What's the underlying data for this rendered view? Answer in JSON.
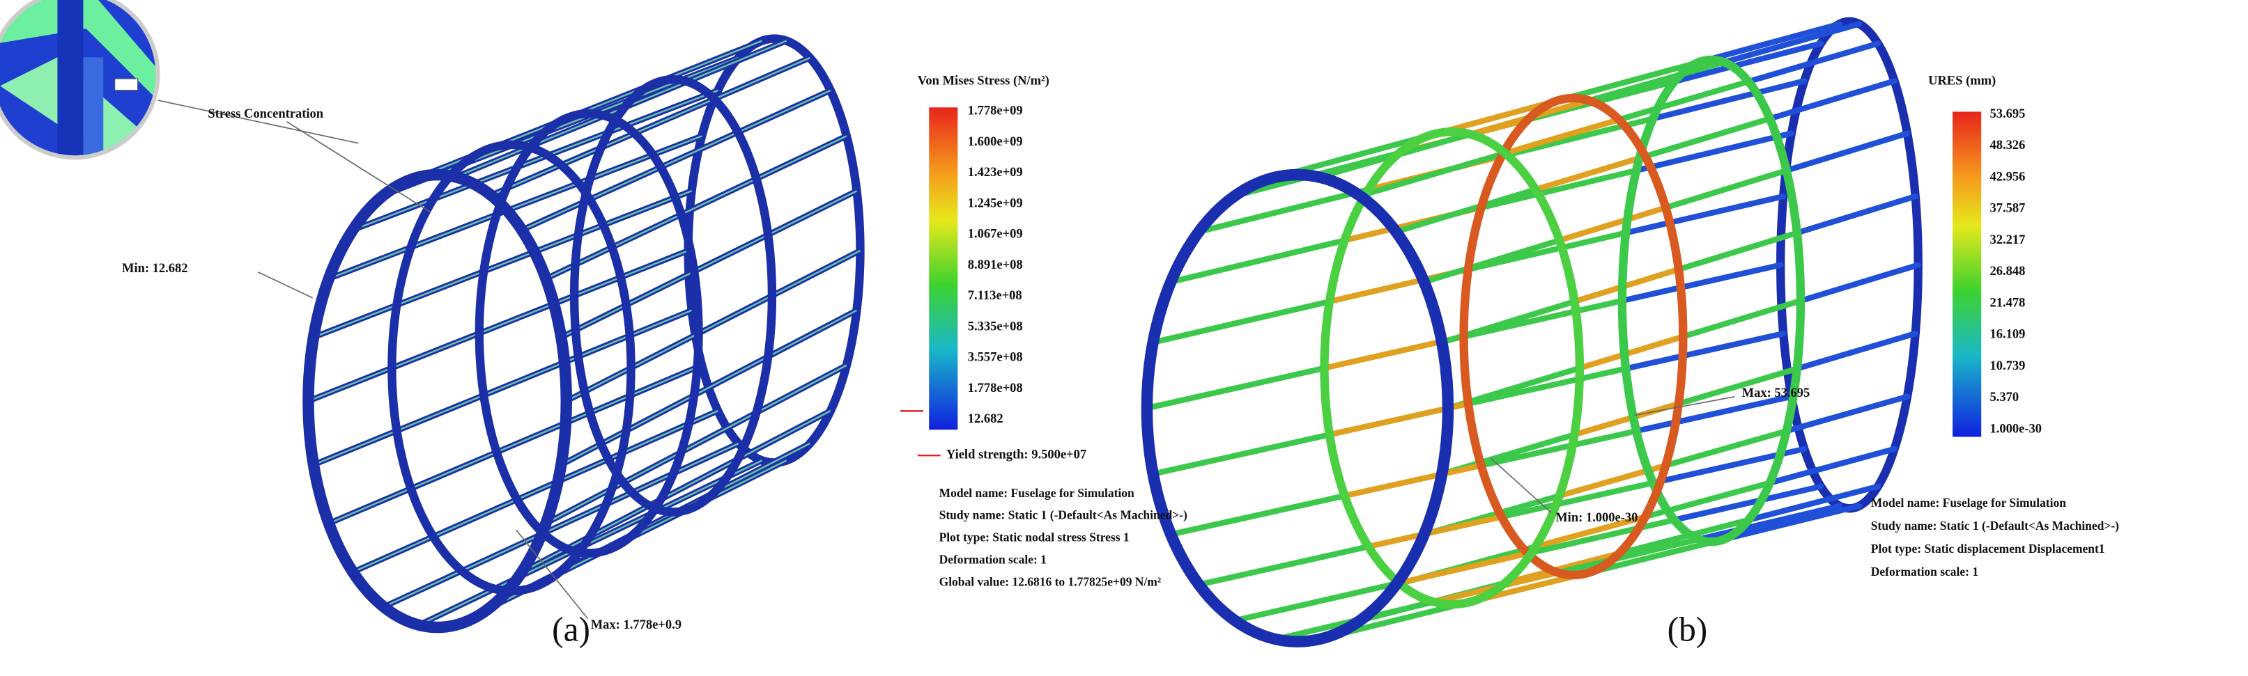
{
  "panels": [
    {
      "caption": "(a)",
      "legend": {
        "title": "Von Mises Stress (N/m²)",
        "labels": [
          "1.778e+09",
          "1.600e+09",
          "1.423e+09",
          "1.245e+09",
          "1.067e+09",
          "8.891e+08",
          "7.113e+08",
          "5.335e+08",
          "3.557e+08",
          "1.778e+08",
          "12.682"
        ],
        "yield": "Yield strength: 9.500e+07"
      },
      "annotations": [
        "Stress Concentration",
        "Min: 12.682",
        "Max: 1.778e+0.9"
      ],
      "info": [
        "Model name: Fuselage for Simulation",
        "Study name: Static 1 (-Default<As Machined>-)",
        "Plot type: Static nodal stress Stress 1",
        "Deformation scale: 1",
        "Global value: 12.6816 to 1.77825e+09 N/m²"
      ]
    },
    {
      "caption": "(b)",
      "legend": {
        "title": "URES (mm)",
        "labels": [
          "53.695",
          "48.326",
          "42.956",
          "37.587",
          "32.217",
          "26.848",
          "21.478",
          "16.109",
          "10.739",
          "5.370",
          "1.000e-30"
        ]
      },
      "annotations": [
        "Max: 53.695",
        "Min: 1.000e-30"
      ],
      "info": [
        "Model name: Fuselage for Simulation",
        "Study name: Static 1 (-Default<As Machined>-)",
        "Plot type: Static displacement Displacement1",
        "Deformation scale: 1"
      ]
    }
  ]
}
